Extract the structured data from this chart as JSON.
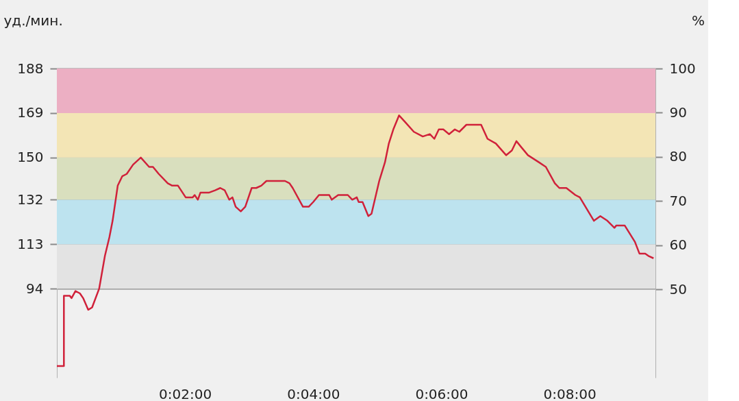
{
  "chart_data": {
    "type": "line",
    "ylabel": "уд./мин.",
    "y2label": "%",
    "xlim": [
      0,
      9.34
    ],
    "xticks": [
      {
        "value": 2,
        "label": "0:02:00"
      },
      {
        "value": 4,
        "label": "0:04:00"
      },
      {
        "value": 6,
        "label": "0:06:00"
      },
      {
        "value": 8,
        "label": "0:08:00"
      }
    ],
    "ylim": [
      56,
      188
    ],
    "yticks": [
      94,
      113,
      132,
      150,
      169,
      188
    ],
    "y2lim": [
      30,
      100
    ],
    "y2ticks": [
      50,
      60,
      70,
      80,
      90,
      100
    ],
    "grid": "y",
    "marker": "none",
    "line_style": "solid",
    "bands": [
      {
        "axis": "y",
        "from": 94,
        "to": 113,
        "color": "#e3e3e3"
      },
      {
        "axis": "y",
        "from": 113,
        "to": 132,
        "color": "#bde3ef"
      },
      {
        "axis": "y",
        "from": 132,
        "to": 150,
        "color": "#d9dfbe"
      },
      {
        "axis": "y",
        "from": 150,
        "to": 169,
        "color": "#f3e5b5"
      },
      {
        "axis": "y",
        "from": 169,
        "to": 188,
        "color": "#ecafc3"
      }
    ],
    "series": [
      {
        "color": "#d0213a",
        "x": [
          0,
          0.11,
          0.11,
          0.2,
          0.23,
          0.29,
          0.36,
          0.41,
          0.49,
          0.55,
          0.66,
          0.75,
          0.82,
          0.87,
          0.95,
          1.02,
          1.09,
          1.19,
          1.31,
          1.44,
          1.5,
          1.59,
          1.73,
          1.8,
          1.89,
          2.01,
          2.12,
          2.15,
          2.2,
          2.24,
          2.37,
          2.47,
          2.55,
          2.62,
          2.69,
          2.74,
          2.79,
          2.87,
          2.94,
          3.04,
          3.11,
          3.19,
          3.27,
          3.56,
          3.63,
          3.68,
          3.84,
          3.93,
          4.0,
          4.09,
          4.25,
          4.29,
          4.39,
          4.54,
          4.61,
          4.68,
          4.71,
          4.77,
          4.86,
          4.91,
          5.03,
          5.12,
          5.18,
          5.25,
          5.34,
          5.44,
          5.57,
          5.71,
          5.82,
          5.89,
          5.96,
          6.03,
          6.12,
          6.21,
          6.28,
          6.39,
          6.62,
          6.72,
          6.85,
          7.01,
          7.1,
          7.17,
          7.35,
          7.52,
          7.63,
          7.77,
          7.84,
          7.95,
          8.09,
          8.16,
          8.38,
          8.48,
          8.59,
          8.7,
          8.73,
          8.86,
          9.02,
          9.09,
          9.18,
          9.23,
          9.31
        ],
        "values": [
          61,
          61,
          91,
          91,
          90,
          93,
          92,
          90,
          85,
          86,
          94,
          108,
          116,
          123,
          138,
          142,
          143,
          147,
          150,
          146,
          146,
          143,
          139,
          138,
          138,
          133,
          133,
          134,
          132,
          135,
          135,
          136,
          137,
          136,
          132,
          133,
          129,
          127,
          129,
          137,
          137,
          138,
          140,
          140,
          139,
          137,
          129,
          129,
          131,
          134,
          134,
          132,
          134,
          134,
          132,
          133,
          131,
          131,
          125,
          126,
          140,
          148,
          156,
          162,
          168,
          165,
          161,
          159,
          160,
          158,
          162,
          162,
          160,
          162,
          161,
          164,
          164,
          158,
          156,
          151,
          153,
          157,
          151,
          148,
          146,
          139,
          137,
          137,
          134,
          133,
          123,
          125,
          123,
          120,
          121,
          121,
          114,
          109,
          109,
          108,
          107
        ]
      }
    ]
  }
}
